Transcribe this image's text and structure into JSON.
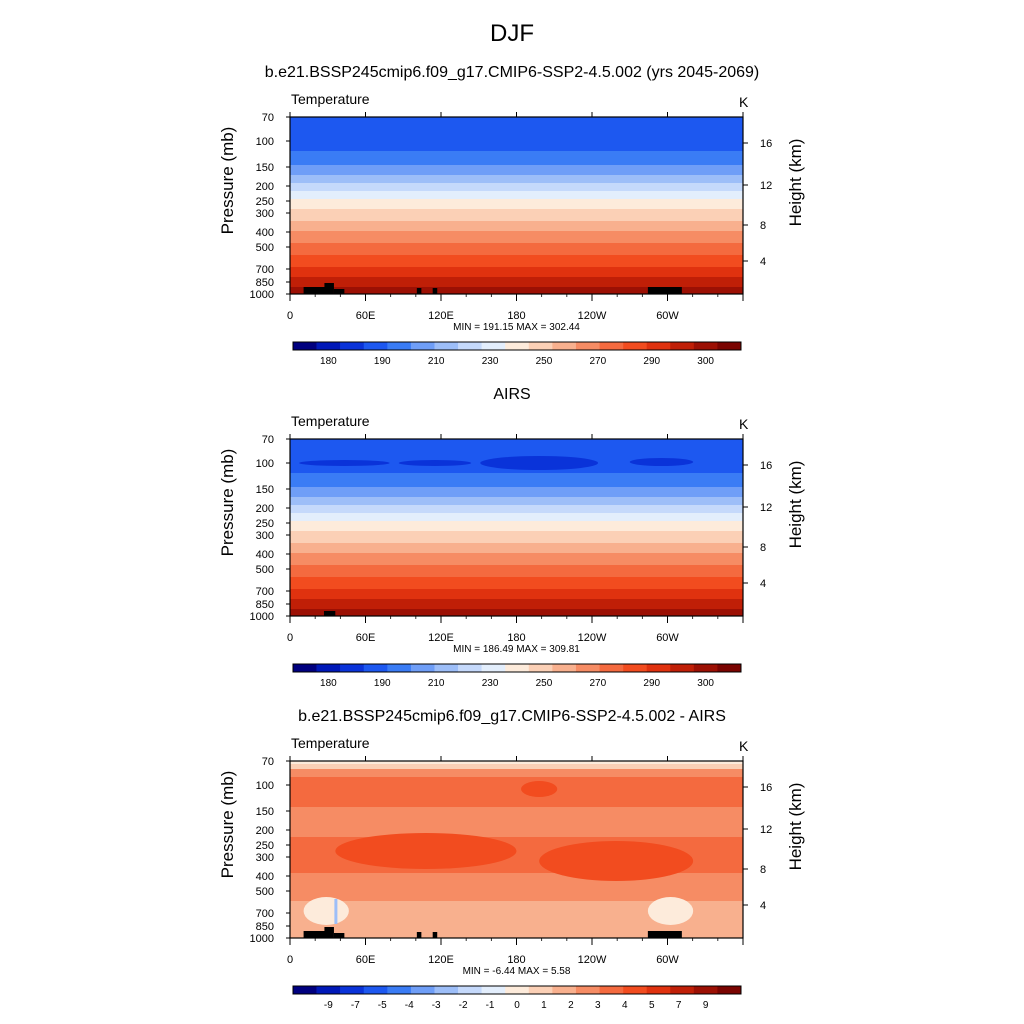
{
  "figure": {
    "title": "DJF"
  },
  "colors": {
    "temperature_scale": [
      "#00007f",
      "#0018b8",
      "#0a33d9",
      "#1d58f0",
      "#3a7cf5",
      "#6f9ef7",
      "#9dbef8",
      "#c5d9fb",
      "#e3eefc",
      "#fdebdb",
      "#fbd0b6",
      "#f8b08e",
      "#f68c64",
      "#f46a3f",
      "#f24c1f",
      "#e0320f",
      "#c01f07",
      "#9c1004",
      "#7a0401"
    ],
    "difference_scale": [
      "#00007f",
      "#0018b8",
      "#0a33d9",
      "#1d58f0",
      "#3a7cf5",
      "#6f9ef7",
      "#9dbef8",
      "#c5d9fb",
      "#e3eefc",
      "#fdebdb",
      "#fbd0b6",
      "#f8b08e",
      "#f68c64",
      "#f46a3f",
      "#f24c1f",
      "#e0320f",
      "#c01f07",
      "#9c1004",
      "#7a0401"
    ],
    "land_mask": "#000000"
  },
  "chart_data": [
    {
      "type": "heatmap",
      "title": "b.e21.BSSP245cmip6.f09_g17.CMIP6-SSP2-4.5.002 (yrs 2045-2069)",
      "variable": "Temperature",
      "units": "K",
      "ylabel": "Pressure (mb)",
      "y2label": "Height (km)",
      "x_ticks": [
        "0",
        "60E",
        "120E",
        "180",
        "120W",
        "60W"
      ],
      "pressure_levels": [
        "70",
        "100",
        "150",
        "200",
        "250",
        "300",
        "400",
        "500",
        "700",
        "850",
        "1000"
      ],
      "height_ticks": [
        "16",
        "12",
        "8",
        "4"
      ],
      "stats": "MIN = 191.15  MAX = 302.44",
      "colorbar_labels": [
        "180",
        "190",
        "210",
        "230",
        "250",
        "270",
        "290",
        "300"
      ],
      "field": "temperature"
    },
    {
      "type": "heatmap",
      "title": "AIRS",
      "variable": "Temperature",
      "units": "K",
      "ylabel": "Pressure (mb)",
      "y2label": "Height (km)",
      "x_ticks": [
        "0",
        "60E",
        "120E",
        "180",
        "120W",
        "60W"
      ],
      "pressure_levels": [
        "70",
        "100",
        "150",
        "200",
        "250",
        "300",
        "400",
        "500",
        "700",
        "850",
        "1000"
      ],
      "height_ticks": [
        "16",
        "12",
        "8",
        "4"
      ],
      "stats": "MIN = 186.49  MAX = 309.81",
      "colorbar_labels": [
        "180",
        "190",
        "210",
        "230",
        "250",
        "270",
        "290",
        "300"
      ],
      "field": "temperature"
    },
    {
      "type": "heatmap",
      "title": "b.e21.BSSP245cmip6.f09_g17.CMIP6-SSP2-4.5.002 - AIRS",
      "variable": "Temperature",
      "units": "K",
      "ylabel": "Pressure (mb)",
      "y2label": "Height (km)",
      "x_ticks": [
        "0",
        "60E",
        "120E",
        "180",
        "120W",
        "60W"
      ],
      "pressure_levels": [
        "70",
        "100",
        "150",
        "200",
        "250",
        "300",
        "400",
        "500",
        "700",
        "850",
        "1000"
      ],
      "height_ticks": [
        "16",
        "12",
        "8",
        "4"
      ],
      "stats": "MIN =  -6.44  MAX =   5.58",
      "colorbar_labels": [
        "-9",
        "-7",
        "-5",
        "-4",
        "-3",
        "-2",
        "-1",
        "0",
        "1",
        "2",
        "3",
        "4",
        "5",
        "7",
        "9"
      ],
      "field": "difference"
    }
  ]
}
